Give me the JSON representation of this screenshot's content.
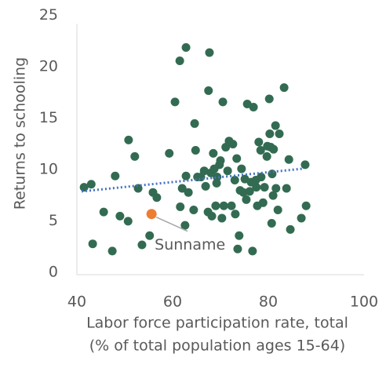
{
  "chart_data": {
    "type": "scatter",
    "xlabel": [
      "Labor force participation rate, total",
      "(% of total population ages 15-64)"
    ],
    "ylabel": "Returns to schooling",
    "xlim": [
      40,
      100
    ],
    "ylim": [
      0,
      25
    ],
    "xticks": [
      40,
      60,
      80,
      100
    ],
    "yticks": [
      0,
      5,
      10,
      15,
      20,
      25
    ],
    "grid": false,
    "series": [
      {
        "color": "#336b52",
        "x": [
          41.5,
          43.0,
          43.3,
          45.6,
          47.4,
          48.0,
          49.0,
          50.7,
          50.8,
          52.1,
          52.8,
          53.6,
          55.2,
          55.9,
          56.7,
          59.3,
          60.5,
          61.5,
          61.6,
          62.0,
          62.6,
          62.8,
          63.3,
          62.8,
          64.4,
          64.6,
          64.8,
          65.2,
          65.9,
          66.6,
          66.9,
          67.4,
          67.7,
          67.5,
          68.0,
          68.2,
          68.5,
          68.7,
          69.0,
          69.2,
          69.3,
          69.8,
          70.0,
          70.3,
          70.5,
          70.7,
          71.1,
          71.5,
          71.8,
          72.3,
          72.6,
          73.0,
          73.1,
          73.4,
          73.6,
          73.9,
          74.1,
          74.4,
          74.8,
          75.1,
          75.4,
          75.6,
          76.1,
          76.4,
          76.7,
          76.9,
          77.4,
          77.5,
          77.7,
          78.0,
          78.4,
          78.5,
          78.9,
          79.2,
          79.7,
          79.8,
          80.2,
          80.3,
          80.5,
          80.7,
          80.8,
          81.0,
          81.1,
          81.5,
          81.6,
          82.0,
          82.3,
          83.3,
          83.8,
          84.3,
          84.6,
          86.9,
          87.7,
          87.9
        ],
        "values": [
          8.5,
          8.8,
          3.0,
          6.1,
          2.3,
          9.6,
          5.7,
          5.2,
          13.1,
          11.5,
          8.4,
          2.9,
          3.8,
          8.0,
          7.5,
          11.8,
          16.8,
          20.8,
          6.6,
          8.4,
          4.8,
          22.1,
          8.0,
          9.6,
          6.3,
          14.7,
          12.1,
          9.5,
          9.5,
          10.1,
          8.6,
          6.1,
          21.6,
          17.9,
          9.9,
          5.7,
          11.8,
          10.3,
          6.7,
          8.9,
          9.5,
          10.7,
          11.1,
          5.5,
          16.8,
          6.7,
          12.4,
          10.1,
          13.0,
          6.7,
          12.7,
          9.2,
          5.9,
          11.3,
          2.5,
          3.8,
          8.2,
          10.3,
          8.0,
          9.3,
          7.3,
          16.6,
          8.1,
          9.0,
          2.3,
          16.3,
          9.2,
          8.5,
          6.7,
          12.9,
          12.1,
          9.5,
          7.0,
          8.5,
          11.5,
          12.5,
          17.1,
          13.7,
          12.4,
          5.0,
          9.8,
          7.7,
          12.2,
          14.5,
          8.4,
          6.3,
          13.7,
          18.2,
          8.4,
          11.2,
          4.4,
          5.5,
          10.7,
          6.7
        ]
      }
    ],
    "highlight": {
      "label": "Sunname",
      "x": 55.6,
      "y": 5.9,
      "color": "#ed7d31"
    },
    "trendline": {
      "color": "#4472c4",
      "x": [
        41,
        87
      ],
      "y": [
        8.1,
        10.3
      ]
    }
  }
}
